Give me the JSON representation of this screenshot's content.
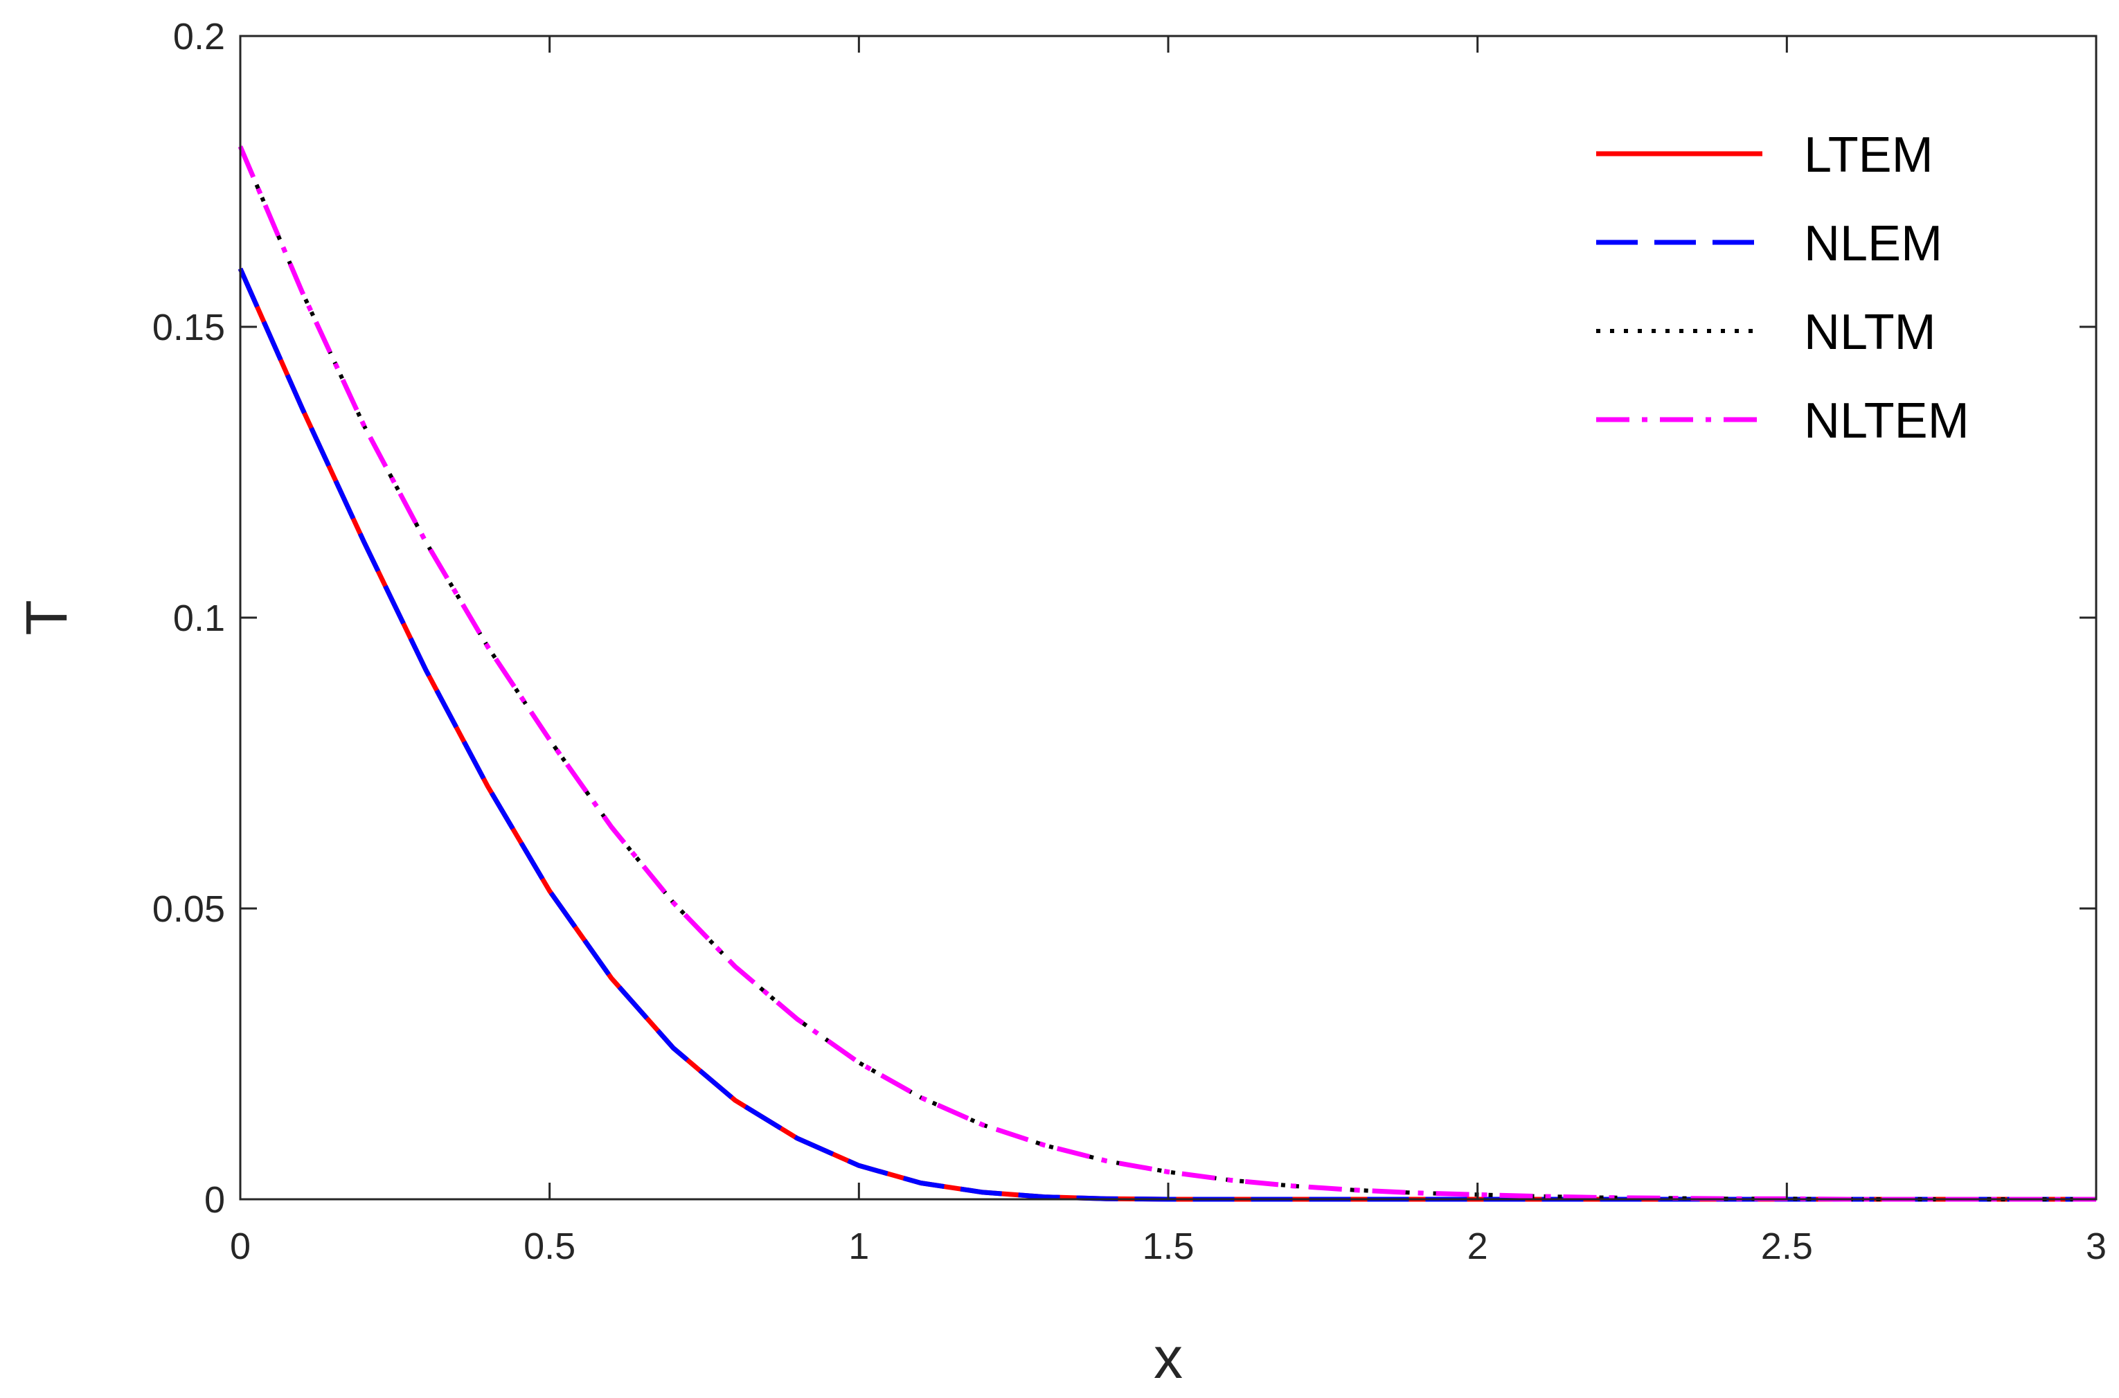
{
  "chart_data": {
    "type": "line",
    "title": "",
    "xlabel": "x",
    "ylabel": "T",
    "xlim": [
      0,
      3
    ],
    "ylim": [
      0,
      0.2
    ],
    "xticks": [
      0,
      0.5,
      1,
      1.5,
      2,
      2.5,
      3
    ],
    "xtick_labels": [
      "0",
      "0.5",
      "1",
      "1.5",
      "2",
      "2.5",
      "3"
    ],
    "yticks": [
      0,
      0.05,
      0.1,
      0.15,
      0.2
    ],
    "ytick_labels": [
      "0",
      "0.05",
      "0.1",
      "0.15",
      "0.2"
    ],
    "grid": false,
    "legend_position": "top-right",
    "x": [
      0,
      0.1,
      0.2,
      0.3,
      0.4,
      0.5,
      0.6,
      0.7,
      0.8,
      0.9,
      1.0,
      1.1,
      1.2,
      1.3,
      1.4,
      1.5,
      1.6,
      1.7,
      1.8,
      1.9,
      2.0,
      2.1,
      2.2,
      2.3,
      2.4,
      2.5,
      2.6,
      2.7,
      2.8,
      2.9,
      3.0
    ],
    "series": [
      {
        "name": "LTEM",
        "color": "#ff0000",
        "line_style": "solid",
        "values": [
          0.16,
          0.136,
          0.113,
          0.091,
          0.071,
          0.053,
          0.038,
          0.026,
          0.017,
          0.0105,
          0.0058,
          0.0028,
          0.0012,
          0.0004,
          0.0001,
          0,
          0,
          0,
          0,
          0,
          0,
          0,
          0,
          0,
          0,
          0,
          0,
          0,
          0,
          0,
          0
        ]
      },
      {
        "name": "NLEM",
        "color": "#0000ff",
        "line_style": "dashed",
        "values": [
          0.16,
          0.136,
          0.113,
          0.091,
          0.071,
          0.053,
          0.038,
          0.026,
          0.017,
          0.0105,
          0.0058,
          0.0028,
          0.0012,
          0.0004,
          0.0001,
          0,
          0,
          0,
          0,
          0,
          0,
          0,
          0,
          0,
          0,
          0,
          0,
          0,
          0,
          0,
          0
        ]
      },
      {
        "name": "NLTM",
        "color": "#000000",
        "line_style": "dotted",
        "values": [
          0.181,
          0.156,
          0.133,
          0.113,
          0.095,
          0.079,
          0.064,
          0.051,
          0.04,
          0.031,
          0.0235,
          0.0175,
          0.0128,
          0.0093,
          0.0066,
          0.0047,
          0.0033,
          0.0023,
          0.0016,
          0.0011,
          0.0008,
          0.0005,
          0.0003,
          0.0002,
          0.0001,
          0.0001,
          0,
          0,
          0,
          0,
          0
        ]
      },
      {
        "name": "NLTEM",
        "color": "#ff00ff",
        "line_style": "dashdot",
        "values": [
          0.181,
          0.156,
          0.133,
          0.113,
          0.095,
          0.079,
          0.064,
          0.051,
          0.04,
          0.031,
          0.0235,
          0.0175,
          0.0128,
          0.0093,
          0.0066,
          0.0047,
          0.0033,
          0.0023,
          0.0016,
          0.0011,
          0.0008,
          0.0005,
          0.0003,
          0.0002,
          0.0001,
          0.0001,
          0,
          0,
          0,
          0,
          0
        ]
      }
    ]
  }
}
